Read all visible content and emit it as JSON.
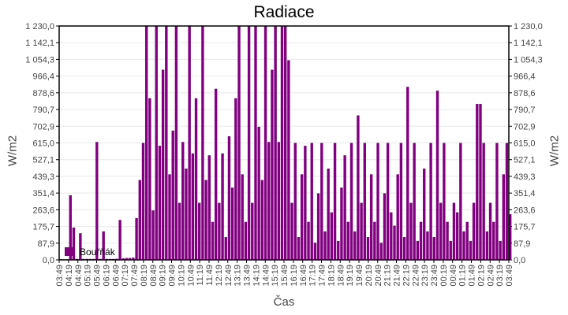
{
  "chart_data": {
    "type": "bar",
    "title": "Radiace",
    "xlabel": "Čas",
    "ylabel": "W/m2",
    "ylim": [
      0,
      1230
    ],
    "yticks": [
      "0,0",
      "87,9",
      "175,7",
      "263,6",
      "351,4",
      "439,3",
      "527,1",
      "615,0",
      "702,9",
      "790,7",
      "878,6",
      "966,4",
      "1 054,3",
      "1 142,1",
      "1 230,0"
    ],
    "xticks": [
      "03:49",
      "04:19",
      "04:49",
      "05:19",
      "05:49",
      "06:19",
      "06:49",
      "07:19",
      "07:49",
      "08:19",
      "08:49",
      "09:19",
      "09:49",
      "10:19",
      "10:49",
      "11:19",
      "11:49",
      "12:19",
      "12:49",
      "13:19",
      "13:49",
      "14:19",
      "14:49",
      "15:19",
      "15:49",
      "16:19",
      "16:49",
      "17:19",
      "17:49",
      "18:19",
      "18:49",
      "19:19",
      "19:49",
      "20:19",
      "20:49",
      "21:19",
      "21:49",
      "22:19",
      "22:49",
      "23:19",
      "23:49",
      "00:19",
      "00:49",
      "01:19",
      "01:49",
      "02:19",
      "02:49",
      "03:19",
      "03:49"
    ],
    "grid": true,
    "legend": "bottom-left",
    "series": [
      {
        "name": "Bouřňák",
        "color": "#800080",
        "interval_minutes": 10,
        "start": "03:49",
        "values": [
          3,
          3,
          3,
          340,
          170,
          5,
          140,
          5,
          5,
          5,
          5,
          620,
          5,
          150,
          5,
          5,
          5,
          6,
          210,
          8,
          10,
          10,
          12,
          220,
          420,
          615,
          1230,
          850,
          260,
          1230,
          600,
          1000,
          1230,
          450,
          680,
          1230,
          300,
          620,
          480,
          1230,
          560,
          850,
          300,
          1230,
          420,
          550,
          200,
          900,
          300,
          560,
          120,
          650,
          380,
          850,
          1230,
          450,
          200,
          1230,
          300,
          1230,
          700,
          420,
          1230,
          620,
          1000,
          1230,
          620,
          1230,
          1230,
          1050,
          300,
          615,
          120,
          450,
          600,
          200,
          615,
          90,
          350,
          615,
          150,
          480,
          250,
          615,
          100,
          380,
          550,
          200,
          615,
          150,
          760,
          300,
          615,
          120,
          450,
          200,
          615,
          90,
          350,
          615,
          250,
          180,
          450,
          615,
          120,
          910,
          300,
          615,
          100,
          200,
          480,
          150,
          615,
          120,
          890,
          300,
          615,
          200,
          100,
          300,
          250,
          615,
          150,
          200,
          100,
          300,
          820,
          820,
          615,
          150,
          300,
          200,
          615,
          100,
          450,
          615,
          240
        ]
      }
    ]
  }
}
